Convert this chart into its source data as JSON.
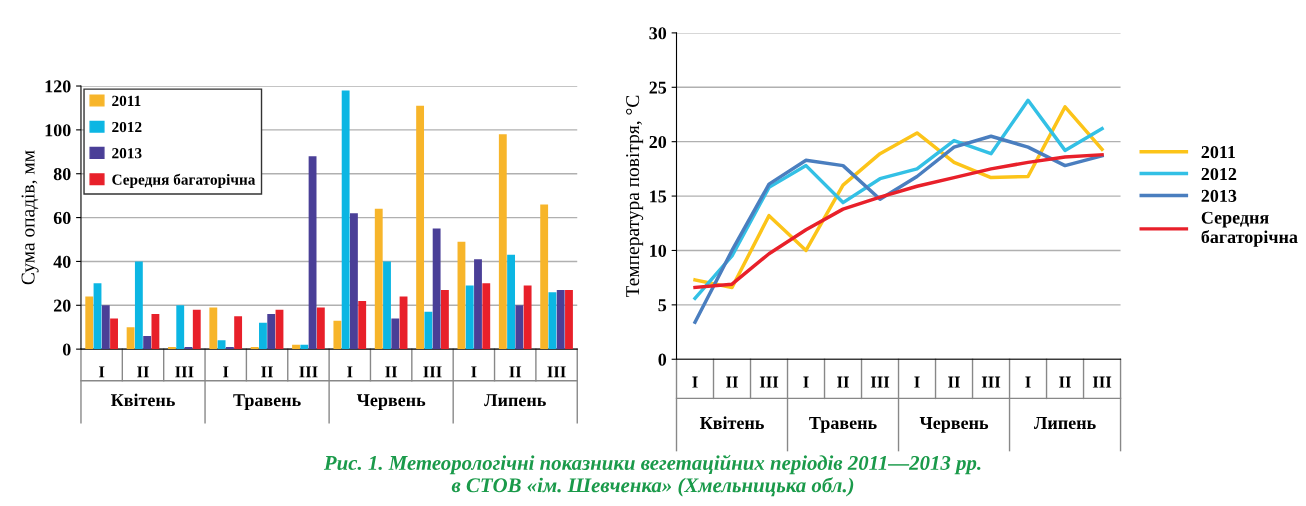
{
  "chart_data": [
    {
      "type": "bar",
      "ylabel": "Сума опадів, мм",
      "categories": [
        "I",
        "II",
        "III",
        "I",
        "II",
        "III",
        "I",
        "II",
        "III",
        "I",
        "II",
        "III"
      ],
      "ylim": [
        0,
        120
      ],
      "yticks": [
        0,
        20,
        40,
        60,
        80,
        100,
        120
      ],
      "grid": "y",
      "legend": "top left",
      "series": [
        {
          "name": "2011",
          "color": "#f7b52a",
          "values": [
            24,
            10,
            1,
            19,
            1,
            2,
            13,
            64,
            111,
            49,
            98,
            66
          ]
        },
        {
          "name": "2012",
          "color": "#0cb6e3",
          "values": [
            30,
            40,
            20,
            4,
            12,
            2,
            118,
            40,
            17,
            29,
            43,
            26
          ]
        },
        {
          "name": "2013",
          "color": "#4a3f97",
          "values": [
            20,
            6,
            1,
            1,
            16,
            88,
            62,
            14,
            55,
            41,
            20,
            27
          ]
        },
        {
          "name": "Середня багаторічна",
          "color": "#e8202a",
          "values": [
            14,
            16,
            18,
            15,
            18,
            19,
            22,
            24,
            27,
            30,
            29,
            27
          ]
        }
      ],
      "annotations": [
        "Квітень",
        "Травень",
        "Червень",
        "Липень",
        "Рис. 1. Метеорологічні показники вегетаційних періодів 2011—2013 рр.\nв СТОВ «ім. Шевченка» (Хмельницька обл.)"
      ]
    },
    {
      "type": "line",
      "ylabel": "Температура повітря, °С",
      "categories": [
        "I",
        "II",
        "III",
        "I",
        "II",
        "III",
        "I",
        "II",
        "III",
        "I",
        "II",
        "III"
      ],
      "ylim": [
        0,
        30
      ],
      "yticks": [
        0,
        5,
        10,
        15,
        20,
        25,
        30
      ],
      "grid": "y",
      "legend": "right",
      "marker": "none",
      "line_style": "solid",
      "series": [
        {
          "name": "2011",
          "color": "#fcc419",
          "values": [
            7.3,
            6.6,
            13.2,
            10.0,
            16.0,
            18.9,
            20.8,
            18.1,
            16.7,
            16.8,
            23.2,
            19.3
          ]
        },
        {
          "name": "2012",
          "color": "#33c0e5",
          "values": [
            5.6,
            9.5,
            15.8,
            17.8,
            14.4,
            16.6,
            17.5,
            20.1,
            18.9,
            23.8,
            19.2,
            21.2
          ]
        },
        {
          "name": "2013",
          "color": "#4a7ebf",
          "values": [
            3.4,
            10.0,
            16.1,
            18.3,
            17.8,
            14.7,
            16.8,
            19.5,
            20.5,
            19.5,
            17.8,
            18.7
          ]
        },
        {
          "name": "Середня\nбагаторічна",
          "color": "#e8202a",
          "values": [
            6.6,
            6.9,
            9.7,
            11.9,
            13.8,
            14.9,
            15.9,
            16.7,
            17.5,
            18.1,
            18.6,
            18.8
          ]
        }
      ],
      "annotations": [
        "Квітень",
        "Травень",
        "Червень",
        "Липень"
      ]
    }
  ]
}
